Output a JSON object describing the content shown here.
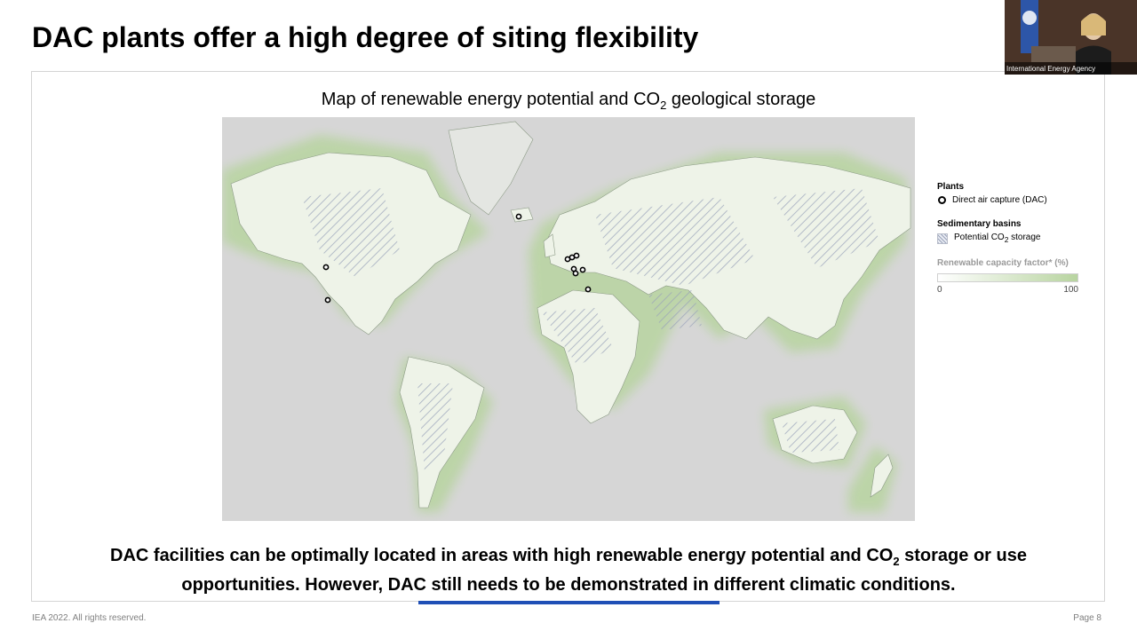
{
  "slide": {
    "title": "DAC plants offer a high degree of siting flexibility",
    "map_title_pre": "Map of renewable energy potential and CO",
    "map_title_sub": "2",
    "map_title_post": " geological storage",
    "caption_line1_pre": "DAC facilities can be optimally located in areas with high renewable energy potential and CO",
    "caption_line1_sub": "2",
    "caption_line1_post": " storage or use",
    "caption_line2": "opportunities. However, DAC still needs to be demonstrated in different climatic conditions.",
    "footer_left": "IEA 2022. All rights reserved.",
    "footer_right": "Page 8"
  },
  "legend": {
    "plants_heading": "Plants",
    "dac_label": "Direct air capture (DAC)",
    "basins_heading": "Sedimentary basins",
    "storage_label_pre": "Potential CO",
    "storage_label_sub": "2",
    "storage_label_post": " storage",
    "scale_heading": "Renewable capacity factor* (%)",
    "scale_min": "0",
    "scale_max": "100"
  },
  "video": {
    "label": "International Energy Agency"
  },
  "colors": {
    "progress_bar": "#1f4fb6",
    "ocean": "#d6d6d6",
    "land": "#eef3e8",
    "renewable_green": "#b8d4a0",
    "hatch": "#9aa3ba"
  },
  "progress": {
    "fraction": 0.5
  }
}
